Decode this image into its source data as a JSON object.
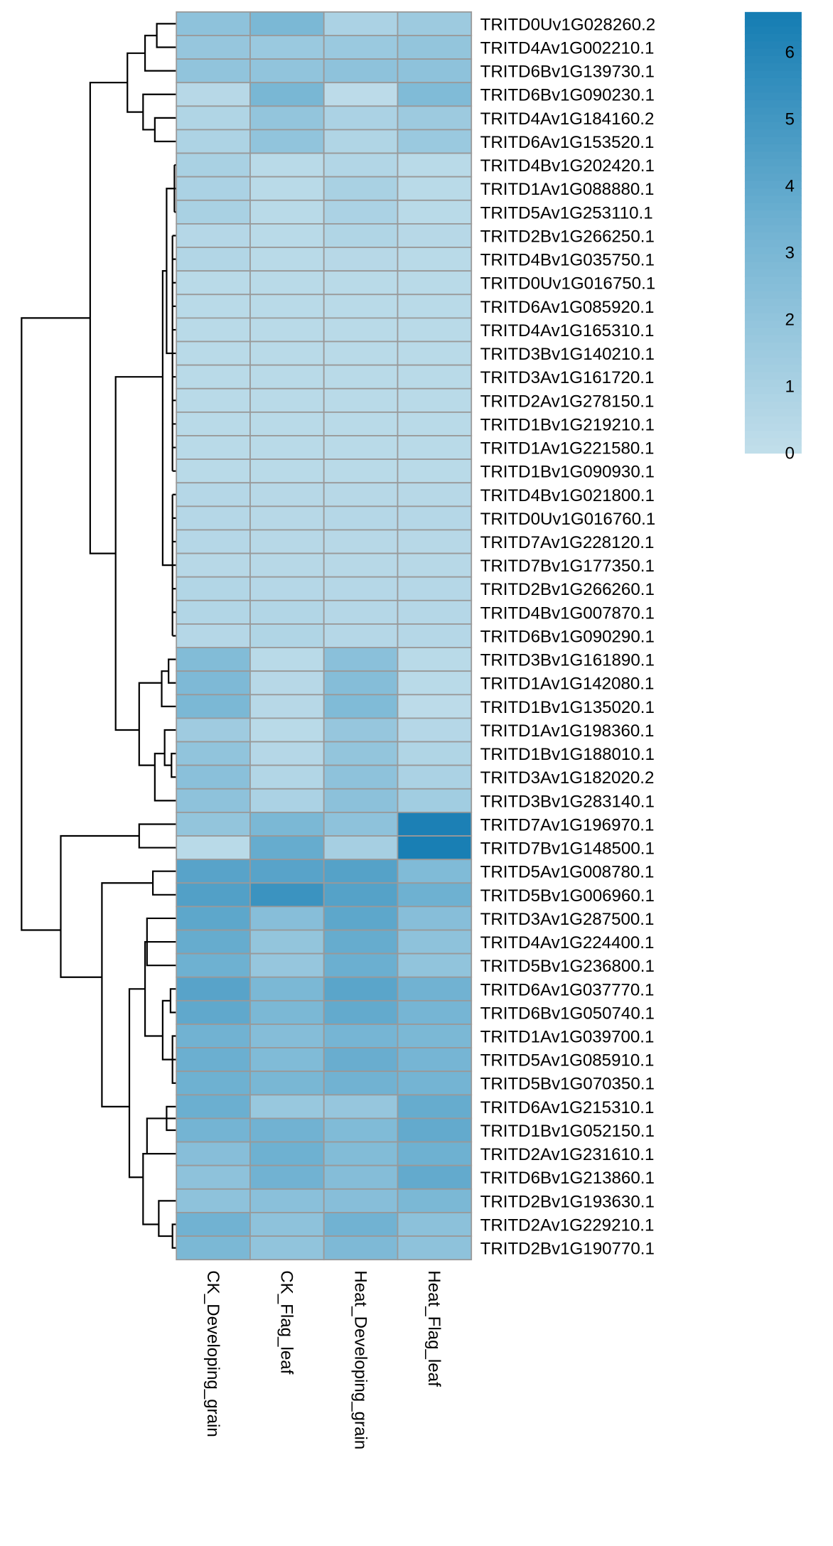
{
  "chart_data": {
    "type": "heatmap",
    "title": "",
    "columns": [
      "CK_Developing_grain",
      "CK_Flag_leaf",
      "Heat_Developing_grain",
      "Heat_Flag_leaf"
    ],
    "rows": [
      "TRITD0Uv1G028260.2",
      "TRITD4Av1G002210.1",
      "TRITD6Bv1G139730.1",
      "TRITD6Bv1G090230.1",
      "TRITD4Av1G184160.2",
      "TRITD6Av1G153520.1",
      "TRITD4Bv1G202420.1",
      "TRITD1Av1G088880.1",
      "TRITD5Av1G253110.1",
      "TRITD2Bv1G266250.1",
      "TRITD4Bv1G035750.1",
      "TRITD0Uv1G016750.1",
      "TRITD6Av1G085920.1",
      "TRITD4Av1G165310.1",
      "TRITD3Bv1G140210.1",
      "TRITD3Av1G161720.1",
      "TRITD2Av1G278150.1",
      "TRITD1Bv1G219210.1",
      "TRITD1Av1G221580.1",
      "TRITD1Bv1G090930.1",
      "TRITD4Bv1G021800.1",
      "TRITD0Uv1G016760.1",
      "TRITD7Av1G228120.1",
      "TRITD7Bv1G177350.1",
      "TRITD2Bv1G266260.1",
      "TRITD4Bv1G007870.1",
      "TRITD6Bv1G090290.1",
      "TRITD3Bv1G161890.1",
      "TRITD1Av1G142080.1",
      "TRITD1Bv1G135020.1",
      "TRITD1Av1G198360.1",
      "TRITD1Bv1G188010.1",
      "TRITD3Av1G182020.2",
      "TRITD3Bv1G283140.1",
      "TRITD7Av1G196970.1",
      "TRITD7Bv1G148500.1",
      "TRITD5Av1G008780.1",
      "TRITD5Bv1G006960.1",
      "TRITD3Av1G287500.1",
      "TRITD4Av1G224400.1",
      "TRITD5Bv1G236800.1",
      "TRITD6Av1G037770.1",
      "TRITD6Bv1G050740.1",
      "TRITD1Av1G039700.1",
      "TRITD5Av1G085910.1",
      "TRITD5Bv1G070350.1",
      "TRITD6Av1G215310.1",
      "TRITD1Bv1G052150.1",
      "TRITD2Av1G231610.1",
      "TRITD6Bv1G213860.1",
      "TRITD2Bv1G193630.1",
      "TRITD2Av1G229210.1",
      "TRITD2Bv1G190770.1"
    ],
    "values": [
      [
        2.2,
        3.0,
        1.0,
        1.6
      ],
      [
        1.9,
        1.7,
        1.7,
        2.0
      ],
      [
        2.1,
        2.1,
        2.2,
        2.2
      ],
      [
        0.5,
        3.1,
        0.3,
        2.8
      ],
      [
        0.8,
        2.0,
        1.0,
        1.6
      ],
      [
        0.9,
        2.1,
        0.8,
        1.7
      ],
      [
        1.1,
        0.4,
        0.7,
        0.4
      ],
      [
        1.0,
        0.4,
        1.1,
        0.4
      ],
      [
        1.1,
        0.4,
        1.0,
        0.4
      ],
      [
        0.6,
        0.4,
        0.8,
        0.5
      ],
      [
        0.7,
        0.4,
        0.5,
        0.4
      ],
      [
        0.4,
        0.4,
        0.4,
        0.4
      ],
      [
        0.4,
        0.4,
        0.4,
        0.4
      ],
      [
        0.4,
        0.4,
        0.4,
        0.4
      ],
      [
        0.4,
        0.4,
        0.4,
        0.4
      ],
      [
        0.4,
        0.4,
        0.4,
        0.4
      ],
      [
        0.4,
        0.4,
        0.4,
        0.4
      ],
      [
        0.4,
        0.4,
        0.4,
        0.4
      ],
      [
        0.4,
        0.4,
        0.4,
        0.4
      ],
      [
        0.4,
        0.4,
        0.4,
        0.4
      ],
      [
        0.6,
        0.5,
        0.5,
        0.5
      ],
      [
        0.6,
        0.5,
        0.6,
        0.6
      ],
      [
        0.6,
        0.5,
        0.5,
        0.5
      ],
      [
        0.5,
        0.5,
        0.5,
        0.5
      ],
      [
        0.7,
        0.6,
        0.6,
        0.6
      ],
      [
        0.7,
        0.7,
        0.6,
        0.6
      ],
      [
        0.6,
        0.8,
        0.6,
        0.6
      ],
      [
        2.7,
        0.4,
        2.4,
        0.4
      ],
      [
        2.9,
        0.5,
        2.6,
        0.4
      ],
      [
        3.0,
        0.5,
        2.8,
        0.3
      ],
      [
        1.5,
        0.4,
        1.9,
        0.6
      ],
      [
        2.1,
        0.6,
        2.0,
        0.8
      ],
      [
        2.4,
        0.7,
        2.2,
        1.0
      ],
      [
        2.2,
        1.0,
        2.3,
        1.4
      ],
      [
        2.0,
        3.0,
        2.2,
        6.4
      ],
      [
        0.4,
        3.8,
        1.2,
        6.5
      ],
      [
        4.3,
        4.3,
        4.4,
        2.8
      ],
      [
        4.5,
        5.3,
        4.4,
        3.5
      ],
      [
        4.1,
        2.5,
        4.1,
        2.5
      ],
      [
        3.8,
        2.0,
        3.8,
        2.2
      ],
      [
        3.5,
        1.9,
        3.6,
        2.1
      ],
      [
        4.3,
        3.0,
        4.2,
        3.4
      ],
      [
        4.0,
        3.0,
        3.9,
        3.2
      ],
      [
        3.4,
        2.6,
        3.2,
        3.0
      ],
      [
        3.6,
        2.8,
        3.7,
        3.2
      ],
      [
        3.5,
        3.1,
        3.4,
        3.3
      ],
      [
        3.6,
        1.8,
        1.9,
        3.8
      ],
      [
        3.3,
        3.4,
        2.8,
        3.9
      ],
      [
        2.5,
        3.5,
        2.7,
        3.5
      ],
      [
        2.2,
        3.4,
        2.6,
        3.9
      ],
      [
        2.2,
        2.4,
        2.5,
        3.0
      ],
      [
        3.4,
        2.2,
        3.4,
        2.3
      ],
      [
        3.0,
        2.1,
        2.9,
        2.2
      ]
    ],
    "color_scale": {
      "min": 0,
      "max": 6.6,
      "low_color": "#c3dfeb",
      "mid_color": "#74b4d3",
      "high_color": "#167db3"
    },
    "legend": {
      "placement": "top-right",
      "ticks": [
        "0",
        "1",
        "2",
        "3",
        "4",
        "5",
        "6"
      ]
    },
    "row_dendrogram": "left",
    "cell_border_color": "#999999"
  }
}
